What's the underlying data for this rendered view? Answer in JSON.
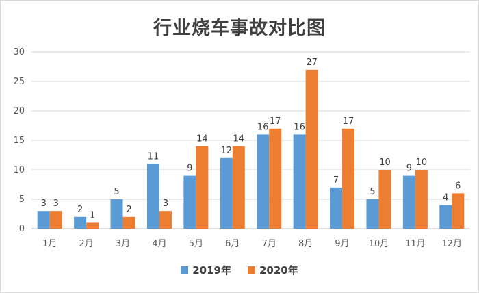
{
  "chart_data": {
    "type": "bar",
    "title": "行业烧车事故对比图",
    "categories": [
      "1月",
      "2月",
      "3月",
      "4月",
      "5月",
      "6月",
      "7月",
      "8月",
      "9月",
      "10月",
      "11月",
      "12月"
    ],
    "series": [
      {
        "name": "2019年",
        "color": "#5b9bd5",
        "values": [
          3,
          2,
          5,
          11,
          9,
          12,
          16,
          16,
          7,
          5,
          9,
          4
        ]
      },
      {
        "name": "2020年",
        "color": "#ed7d31",
        "values": [
          3,
          1,
          2,
          3,
          14,
          14,
          17,
          27,
          17,
          10,
          10,
          6
        ]
      }
    ],
    "ylim": [
      0,
      30
    ],
    "yticks": [
      "0",
      "5",
      "10",
      "15",
      "20",
      "25",
      "30"
    ],
    "grid": true,
    "legend_position": "bottom",
    "xlabel": "",
    "ylabel": ""
  }
}
